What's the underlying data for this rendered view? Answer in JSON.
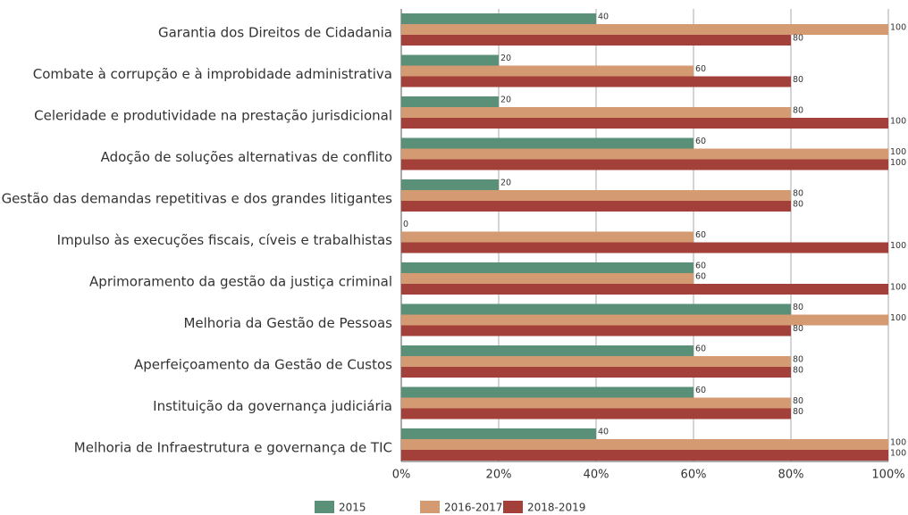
{
  "chart_data": {
    "type": "bar",
    "orientation": "horizontal",
    "categories": [
      "Garantia dos Direitos de Cidadania",
      "Combate à corrupção e à improbidade administrativa",
      "Celeridade e produtividade na prestação jurisdicional",
      "Adoção de soluções alternativas de conflito",
      "Gestão das demandas repetitivas e dos grandes litigantes",
      "Impulso às execuções fiscais, cíveis e trabalhistas",
      "Aprimoramento da gestão da justiça criminal",
      "Melhoria da Gestão de Pessoas",
      "Aperfeiçoamento da Gestão de Custos",
      "Instituição da governança judiciária",
      "Melhoria de Infraestrutura e governança de TIC"
    ],
    "series": [
      {
        "name": "2015",
        "color": "#5a8f78",
        "values": [
          40,
          20,
          20,
          60,
          20,
          0,
          60,
          80,
          60,
          60,
          40
        ]
      },
      {
        "name": "2016-2017",
        "color": "#d49a72",
        "values": [
          100,
          60,
          80,
          100,
          80,
          60,
          60,
          100,
          80,
          80,
          100
        ]
      },
      {
        "name": "2018-2019",
        "color": "#a4403a",
        "values": [
          80,
          80,
          100,
          100,
          80,
          100,
          100,
          80,
          80,
          80,
          100
        ]
      }
    ],
    "xlim": [
      0,
      100
    ],
    "xticks": [
      {
        "value": 0,
        "label": "0%"
      },
      {
        "value": 20,
        "label": "20%"
      },
      {
        "value": 40,
        "label": "40%"
      },
      {
        "value": 60,
        "label": "60%"
      },
      {
        "value": 80,
        "label": "80%"
      },
      {
        "value": 100,
        "label": "100%"
      }
    ],
    "grid": true,
    "legend": "bottom"
  }
}
